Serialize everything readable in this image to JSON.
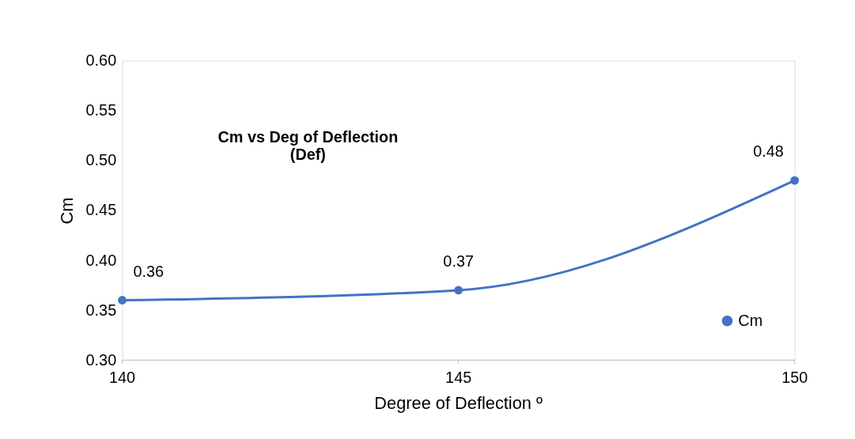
{
  "chart_data": {
    "type": "line",
    "title": "Cm vs Deg of Deflection\n(Def)",
    "xlabel": "Degree of Deflection º",
    "ylabel": "Cm",
    "x": [
      140,
      145,
      150
    ],
    "series": [
      {
        "name": "Cm",
        "color": "#4472c4",
        "values": [
          0.36,
          0.37,
          0.48
        ]
      }
    ],
    "xlim": [
      140,
      150
    ],
    "xticks": [
      140,
      145,
      150
    ],
    "ylim": [
      0.3,
      0.6
    ],
    "yticks": [
      {
        "value": 0.3,
        "label": "0.30"
      },
      0.35,
      {
        "value": 0.4,
        "label": "0.40"
      },
      0.45,
      {
        "value": 0.5,
        "label": "0.50"
      },
      0.55,
      {
        "value": 0.6,
        "label": "0.60"
      }
    ],
    "data_labels": true,
    "grid": false,
    "legend": "bottom right",
    "marker": "circle",
    "line_style": "solid"
  }
}
